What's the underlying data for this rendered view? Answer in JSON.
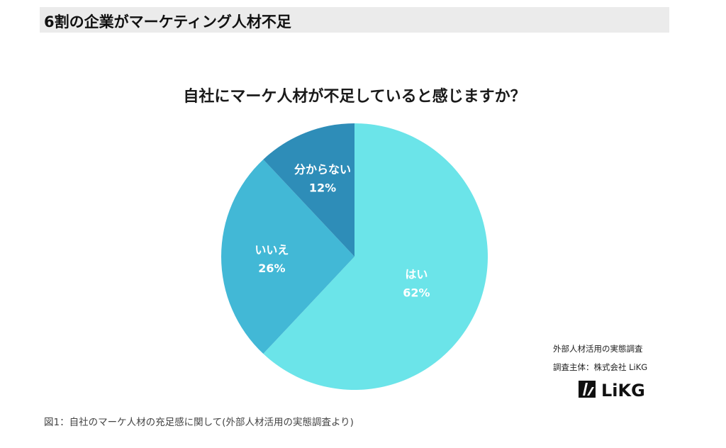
{
  "heading": "6割の企業がマーケティング人材不足",
  "chart_data": {
    "type": "pie",
    "title": "自社にマーケ人材が不足していると感じますか？",
    "slices": [
      {
        "label": "はい",
        "value": 62,
        "value_label": "62%",
        "color": "#6be4e9"
      },
      {
        "label": "いいえ",
        "value": 26,
        "value_label": "26%",
        "color": "#42b8d6"
      },
      {
        "label": "分からない",
        "value": 12,
        "value_label": "12%",
        "color": "#2e8db8"
      }
    ],
    "start": "12 o'clock",
    "direction": "clockwise",
    "legend": "none"
  },
  "source": {
    "line1": "外部人材活用の実態調査",
    "line2": "調査主体：株式会社 LiKG",
    "logo_text": "LiKG"
  },
  "caption": "図1：自社のマーケ人材の充足感に関して(外部人材活用の実態調査より)"
}
